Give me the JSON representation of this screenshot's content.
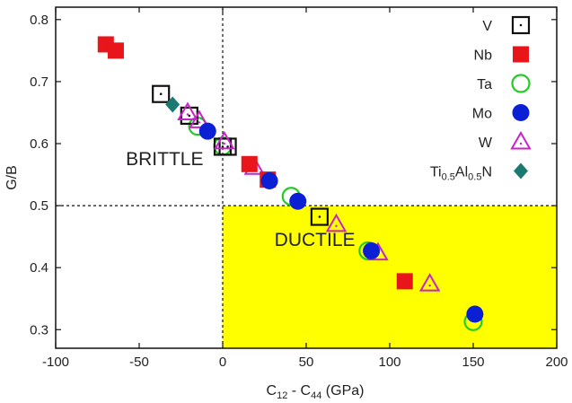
{
  "chart_data": {
    "type": "scatter",
    "xlabel_base": "C",
    "xlabel_sub1": "12",
    "xlabel_mid": " - C",
    "xlabel_sub2": "44",
    "xlabel_unit": " (GPa)",
    "ylabel": "G/B",
    "xlim": [
      -100,
      200
    ],
    "ylim": [
      0.27,
      0.82
    ],
    "xticks": [
      "-100",
      "-50",
      "0",
      "50",
      "100",
      "150",
      "200"
    ],
    "xtick_values": [
      -100,
      -50,
      0,
      50,
      100,
      150,
      200
    ],
    "yticks": [
      "0.3",
      "0.4",
      "0.5",
      "0.6",
      "0.7",
      "0.8"
    ],
    "ytick_values": [
      0.3,
      0.4,
      0.5,
      0.6,
      0.7,
      0.8
    ],
    "reference_lines": {
      "x": 0,
      "y": 0.5,
      "style": "dotted"
    },
    "regions": [
      {
        "label": "BRITTLE",
        "anchor": {
          "x": -58,
          "y": 0.565
        }
      },
      {
        "label": "DUCTILE",
        "anchor": {
          "x": 31,
          "y": 0.435
        },
        "fill": "#ffff00",
        "x_range": [
          0,
          200
        ],
        "y_range": [
          0.27,
          0.5
        ]
      }
    ],
    "legend_position": "top-right",
    "series": [
      {
        "name": "V",
        "marker": "square-dot",
        "color": "#111111",
        "points": [
          [
            -37,
            0.68
          ],
          [
            -20,
            0.645
          ],
          [
            0,
            0.595
          ],
          [
            3,
            0.595
          ],
          [
            58,
            0.482
          ]
        ]
      },
      {
        "name": "Nb",
        "marker": "filled-square",
        "color": "#e8151b",
        "points": [
          [
            -70,
            0.76
          ],
          [
            -64,
            0.75
          ],
          [
            16,
            0.567
          ],
          [
            27,
            0.542
          ],
          [
            109,
            0.378
          ]
        ]
      },
      {
        "name": "Ta",
        "marker": "open-circle",
        "color": "#22cc22",
        "points": [
          [
            -15,
            0.628
          ],
          [
            0,
            0.596
          ],
          [
            41,
            0.515
          ],
          [
            87,
            0.427
          ],
          [
            150,
            0.313
          ]
        ]
      },
      {
        "name": "Mo",
        "marker": "filled-circle",
        "color": "#0b1fd4",
        "points": [
          [
            -9,
            0.62
          ],
          [
            28,
            0.54
          ],
          [
            45,
            0.507
          ],
          [
            89,
            0.427
          ],
          [
            151,
            0.325
          ]
        ]
      },
      {
        "name": "W",
        "marker": "open-triangle",
        "color": "#cc22cc",
        "points": [
          [
            -21,
            0.65
          ],
          [
            -14,
            0.637
          ],
          [
            1,
            0.603
          ],
          [
            19,
            0.562
          ],
          [
            68,
            0.47
          ],
          [
            93,
            0.424
          ],
          [
            124,
            0.374
          ]
        ]
      },
      {
        "name_base": "Ti",
        "name_sub1": "0.5",
        "name_mid": "Al",
        "name_sub2": "0.5",
        "name_end": "N",
        "marker": "filled-diamond",
        "color": "#1a7a72",
        "points": [
          [
            -30,
            0.663
          ]
        ]
      }
    ]
  }
}
